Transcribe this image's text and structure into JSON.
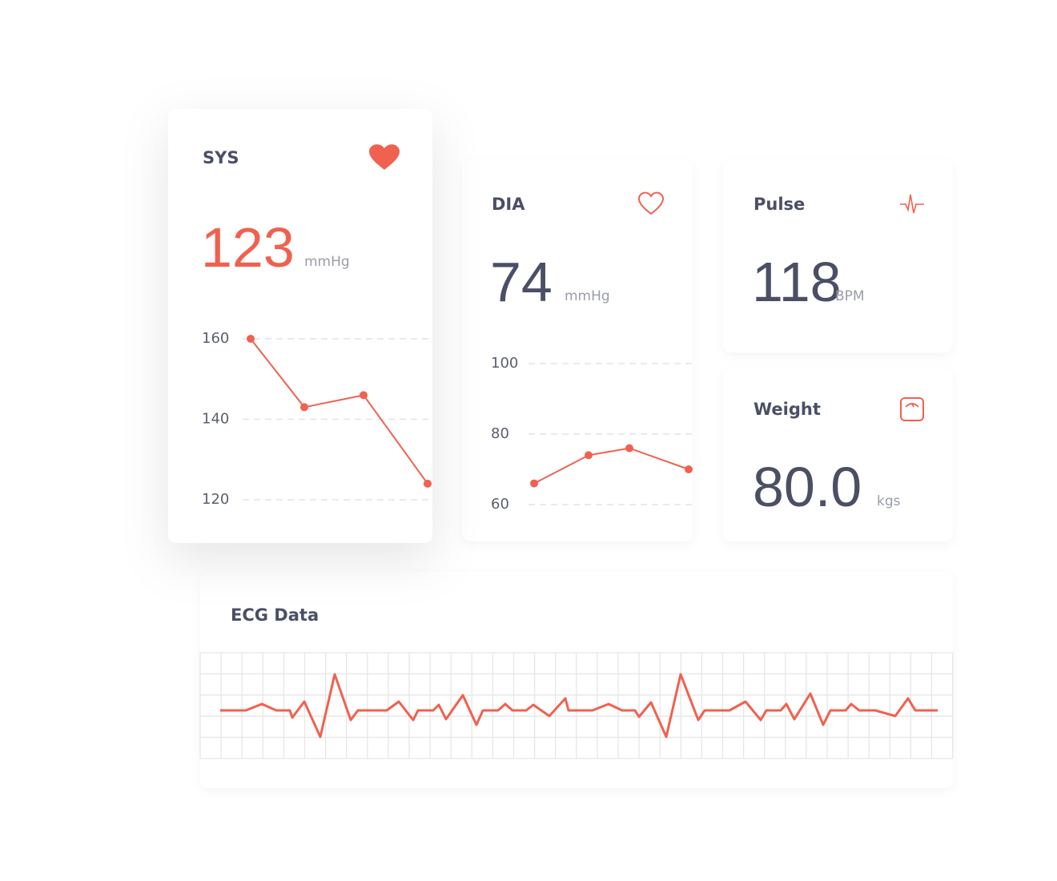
{
  "sys": {
    "title": "SYS",
    "value": "123",
    "unit": "mmHg",
    "chart": {
      "type": "line",
      "values": [
        160,
        143,
        146,
        124
      ],
      "color": "#f0614f",
      "ylim": [
        120,
        160
      ],
      "yticks": [
        120,
        140,
        160
      ],
      "grid": true
    }
  },
  "dia": {
    "title": "DIA",
    "value": "74",
    "unit": "mmHg",
    "chart": {
      "type": "line",
      "values": [
        66,
        74,
        76,
        70
      ],
      "color": "#f0614f",
      "ylim": [
        60,
        100
      ],
      "yticks": [
        60,
        80,
        100
      ],
      "grid": true
    }
  },
  "pulse": {
    "title": "Pulse",
    "value": "118",
    "unit": "BPM"
  },
  "weight": {
    "title": "Weight",
    "value": "80.0",
    "unit": "kgs"
  },
  "ecg": {
    "title": "ECG Data"
  }
}
